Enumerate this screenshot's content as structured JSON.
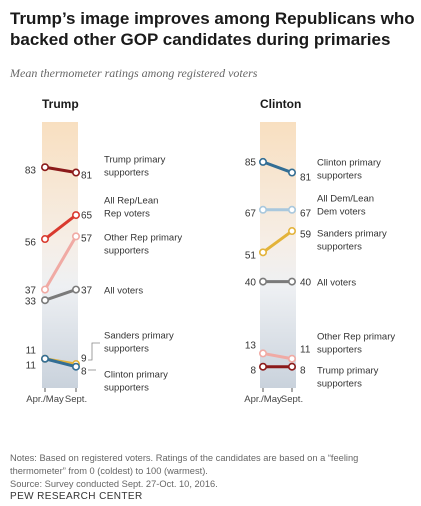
{
  "title": "Trump’s image improves among Republicans who backed other GOP candidates during primaries",
  "subtitle": "Mean thermometer ratings among registered voters",
  "notes": "Notes: Based on registered voters. Ratings of the candidates are based on a “feeling thermometer” from 0 (coldest) to 100 (warmest).",
  "source": "Source: Survey conducted Sept. 27-Oct. 10, 2016.",
  "org": "PEW RESEARCH CENTER",
  "chart_data": [
    {
      "type": "line",
      "title": "Trump",
      "x": [
        "Apr./May",
        "Sept."
      ],
      "ylim": [
        0,
        100
      ],
      "series": [
        {
          "name": "Trump primary supporters",
          "values": [
            83,
            81
          ],
          "color": "#8b1a1a"
        },
        {
          "name": "All Rep/Lean Rep voters",
          "values": [
            56,
            65
          ],
          "color": "#d93a2f"
        },
        {
          "name": "Other Rep primary supporters",
          "values": [
            37,
            57
          ],
          "color": "#f0aaa4"
        },
        {
          "name": "All voters",
          "values": [
            33,
            37
          ],
          "color": "#7a7a7a"
        },
        {
          "name": "Sanders primary supporters",
          "values": [
            11,
            9
          ],
          "color": "#e3b33a"
        },
        {
          "name": "Clinton primary supporters",
          "values": [
            11,
            8
          ],
          "color": "#336e94"
        }
      ]
    },
    {
      "type": "line",
      "title": "Clinton",
      "x": [
        "Apr./May",
        "Sept."
      ],
      "ylim": [
        0,
        100
      ],
      "series": [
        {
          "name": "Clinton primary supporters",
          "values": [
            85,
            81
          ],
          "color": "#336e94"
        },
        {
          "name": "All Dem/Lean Dem voters",
          "values": [
            67,
            67
          ],
          "color": "#a9c8dd"
        },
        {
          "name": "Sanders primary supporters",
          "values": [
            51,
            59
          ],
          "color": "#e3b33a"
        },
        {
          "name": "All voters",
          "values": [
            40,
            40
          ],
          "color": "#7a7a7a"
        },
        {
          "name": "Other Rep primary supporters",
          "values": [
            13,
            11
          ],
          "color": "#f0aaa4"
        },
        {
          "name": "Trump primary supporters",
          "values": [
            8,
            8
          ],
          "color": "#8b1a1a"
        }
      ]
    }
  ]
}
